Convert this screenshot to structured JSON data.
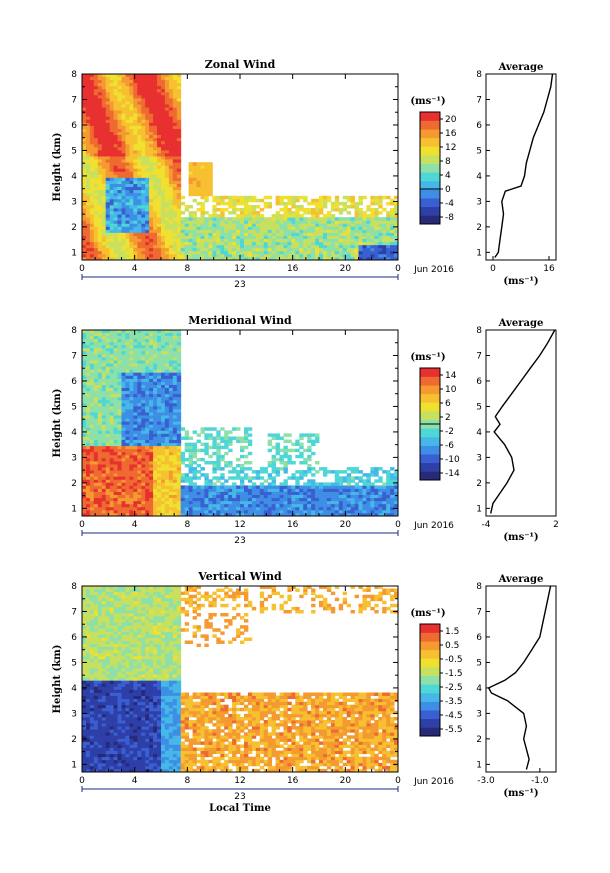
{
  "colors": {
    "scale": [
      "#262a78",
      "#2e3fa8",
      "#3a5fd0",
      "#3f8ee6",
      "#45b8e8",
      "#4fd6d6",
      "#8ce0a8",
      "#c8e060",
      "#f0e030",
      "#f6c030",
      "#f49a30",
      "#ee6a30",
      "#e83030"
    ]
  },
  "chart_data": [
    {
      "type": "heatmap",
      "title": "Zonal Wind",
      "ylabel": "Height (km)",
      "xlabel": "",
      "units": "(ms⁻¹)",
      "date_label": "Jun 2016",
      "day_label": "23",
      "x_ticks": [
        "0",
        "4",
        "8",
        "12",
        "16",
        "20",
        "0"
      ],
      "y_ticks": [
        "1",
        "2",
        "3",
        "4",
        "5",
        "6",
        "7",
        "8"
      ],
      "colorbar_ticks": [
        "20",
        "16",
        "12",
        "8",
        "4",
        "0",
        "-4",
        "-8"
      ],
      "colorbar_range": [
        -10,
        22
      ],
      "average": {
        "title": "Average",
        "xlabel": "(ms⁻¹)",
        "x_ticks": [
          "0",
          "16"
        ],
        "xlim": [
          -2,
          18
        ],
        "heights": [
          0.8,
          1.0,
          1.5,
          2.0,
          2.5,
          3.0,
          3.4,
          3.6,
          4.0,
          4.5,
          5.0,
          5.5,
          6.0,
          6.5,
          7.0,
          7.5,
          8.0
        ],
        "values": [
          0.5,
          1.5,
          2.0,
          2.5,
          3.0,
          2.5,
          3.5,
          8.0,
          9.0,
          9.5,
          10.5,
          11.5,
          13.0,
          14.5,
          15.5,
          16.5,
          17.0
        ]
      }
    },
    {
      "type": "heatmap",
      "title": "Meridional Wind",
      "ylabel": "Height (km)",
      "xlabel": "",
      "units": "(ms⁻¹)",
      "date_label": "Jun 2016",
      "day_label": "23",
      "x_ticks": [
        "0",
        "4",
        "8",
        "12",
        "16",
        "20",
        "0"
      ],
      "y_ticks": [
        "1",
        "2",
        "3",
        "4",
        "5",
        "6",
        "7",
        "8"
      ],
      "colorbar_ticks": [
        "14",
        "10",
        "6",
        "2",
        "-2",
        "-6",
        "-10",
        "-14"
      ],
      "colorbar_range": [
        -16,
        16
      ],
      "average": {
        "title": "Average",
        "xlabel": "(ms⁻¹)",
        "x_ticks": [
          "-4",
          "2"
        ],
        "xlim": [
          -4,
          2
        ],
        "heights": [
          0.8,
          1.2,
          1.6,
          2.0,
          2.5,
          3.0,
          3.5,
          4.0,
          4.3,
          4.6,
          5.0,
          5.5,
          6.0,
          6.5,
          7.0,
          7.5,
          8.0
        ],
        "values": [
          -3.6,
          -3.4,
          -2.8,
          -2.2,
          -1.6,
          -1.8,
          -2.4,
          -3.3,
          -2.8,
          -3.2,
          -2.6,
          -1.8,
          -1.0,
          -0.2,
          0.6,
          1.3,
          1.9
        ]
      }
    },
    {
      "type": "heatmap",
      "title": "Vertical Wind",
      "ylabel": "Height (km)",
      "xlabel": "Local Time",
      "units": "(ms⁻¹)",
      "date_label": "Jun 2016",
      "day_label": "23",
      "x_ticks": [
        "0",
        "4",
        "8",
        "12",
        "16",
        "20",
        "0"
      ],
      "y_ticks": [
        "1",
        "2",
        "3",
        "4",
        "5",
        "6",
        "7",
        "8"
      ],
      "colorbar_ticks": [
        "1.5",
        "0.5",
        "-0.5",
        "-1.5",
        "-2.5",
        "-3.5",
        "-4.5",
        "-5.5"
      ],
      "colorbar_range": [
        -6.0,
        2.0
      ],
      "average": {
        "title": "Average",
        "xlabel": "(ms⁻¹)",
        "x_ticks": [
          "-3.0",
          "-1.0"
        ],
        "xlim": [
          -3.0,
          -0.4
        ],
        "heights": [
          0.8,
          1.2,
          1.6,
          2.0,
          2.5,
          3.0,
          3.5,
          3.8,
          4.0,
          4.3,
          4.6,
          5.0,
          5.5,
          6.0,
          6.5,
          7.0,
          7.5,
          8.0
        ],
        "values": [
          -1.5,
          -1.4,
          -1.5,
          -1.6,
          -1.5,
          -1.6,
          -2.2,
          -2.8,
          -2.9,
          -2.3,
          -1.9,
          -1.6,
          -1.3,
          -1.0,
          -0.9,
          -0.8,
          -0.7,
          -0.6
        ]
      }
    }
  ]
}
